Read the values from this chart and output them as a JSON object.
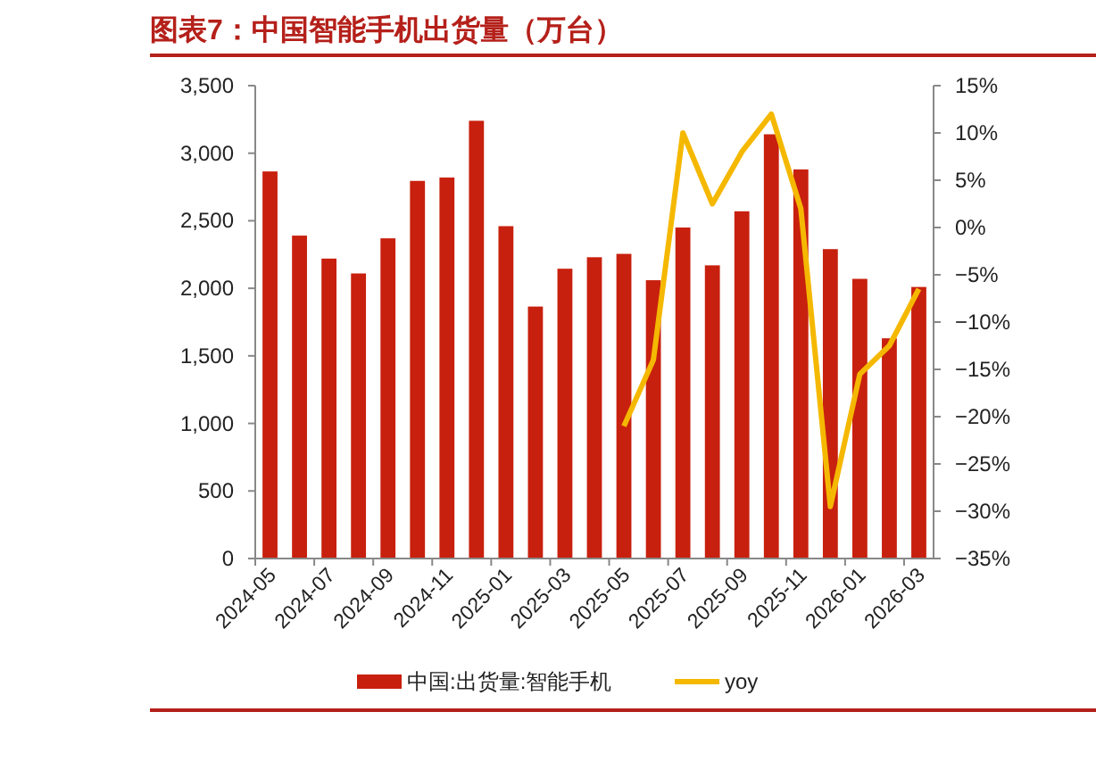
{
  "chart_data": {
    "type": "bar",
    "title": "图表7：中国智能手机出货量（万台）",
    "categories": [
      "2024-05",
      null,
      "2024-07",
      null,
      "2024-09",
      null,
      "2024-11",
      null,
      "2025-01",
      null,
      "2025-03",
      null,
      "2025-05",
      null,
      "2025-07",
      null,
      "2025-09",
      null,
      "2025-11",
      null,
      "2026-01",
      null,
      "2026-03"
    ],
    "series": [
      {
        "name": "中国:出货量:智能手机",
        "color": "#c8200e",
        "values": [
          2865,
          2390,
          2220,
          2110,
          2370,
          2795,
          2820,
          3240,
          2460,
          1865,
          2145,
          2230,
          2255,
          2060,
          2450,
          2170,
          2570,
          3140,
          2880,
          2290,
          2070,
          1630,
          2010
        ]
      },
      {
        "name": "yoy",
        "type": "line",
        "axis": "y2",
        "color": "#f5b800",
        "values": [
          null,
          null,
          null,
          null,
          null,
          null,
          null,
          null,
          null,
          null,
          null,
          null,
          -21,
          -14,
          10,
          2.5,
          8,
          12,
          2,
          -29.5,
          -15.5,
          -12.5,
          -6.5
        ]
      }
    ],
    "ylim": [
      0,
      3500
    ],
    "yticks": [
      {
        "value": 0,
        "label": "0"
      },
      {
        "value": 500,
        "label": "500"
      },
      {
        "value": 1000,
        "label": "1,000"
      },
      {
        "value": 1500,
        "label": "1,500"
      },
      {
        "value": 2000,
        "label": "2,000"
      },
      {
        "value": 2500,
        "label": "2,500"
      },
      {
        "value": 3000,
        "label": "3,000"
      },
      {
        "value": 3500,
        "label": "3,500"
      }
    ],
    "y2lim": [
      -35,
      15
    ],
    "y2ticks": [
      {
        "value": 15,
        "label": "15%"
      },
      {
        "value": 10,
        "label": "10%"
      },
      {
        "value": 5,
        "label": "5%"
      },
      {
        "value": 0,
        "label": "0%"
      },
      {
        "value": -5,
        "label": "−5%"
      },
      {
        "value": -10,
        "label": "−10%"
      },
      {
        "value": -15,
        "label": "−15%"
      },
      {
        "value": -20,
        "label": "−20%"
      },
      {
        "value": -25,
        "label": "−25%"
      },
      {
        "value": -30,
        "label": "−30%"
      },
      {
        "value": -35,
        "label": "−35%"
      }
    ],
    "grid": false,
    "legend": "bottom"
  }
}
